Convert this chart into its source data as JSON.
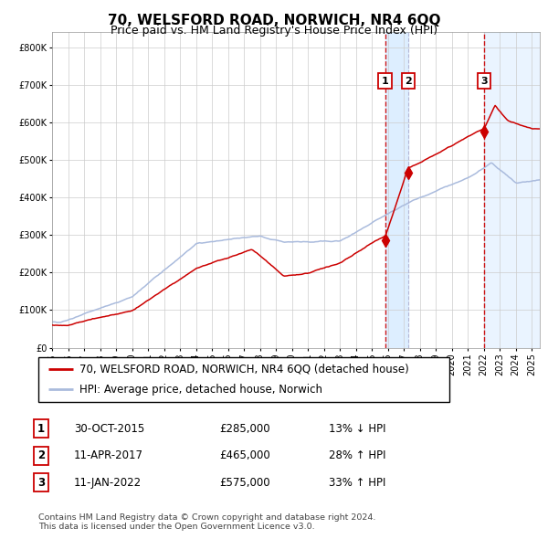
{
  "title": "70, WELSFORD ROAD, NORWICH, NR4 6QQ",
  "subtitle": "Price paid vs. HM Land Registry's House Price Index (HPI)",
  "legend_line1": "70, WELSFORD ROAD, NORWICH, NR4 6QQ (detached house)",
  "legend_line2": "HPI: Average price, detached house, Norwich",
  "table_rows": [
    {
      "num": "1",
      "date": "30-OCT-2015",
      "price": "£285,000",
      "hpi": "13% ↓ HPI"
    },
    {
      "num": "2",
      "date": "11-APR-2017",
      "price": "£465,000",
      "hpi": "28% ↑ HPI"
    },
    {
      "num": "3",
      "date": "11-JAN-2022",
      "price": "£575,000",
      "hpi": "33% ↑ HPI"
    }
  ],
  "footer": "Contains HM Land Registry data © Crown copyright and database right 2024.\nThis data is licensed under the Open Government Licence v3.0.",
  "red_color": "#cc0000",
  "blue_color": "#aabbdd",
  "sale1_date_num": 2015.83,
  "sale2_date_num": 2017.27,
  "sale3_date_num": 2022.03,
  "sale1_price": 285000,
  "sale2_price": 465000,
  "sale3_price": 575000,
  "ylim": [
    0,
    840000
  ],
  "xlim_start": 1995.0,
  "xlim_end": 2025.5,
  "shade_color": "#ddeeff"
}
